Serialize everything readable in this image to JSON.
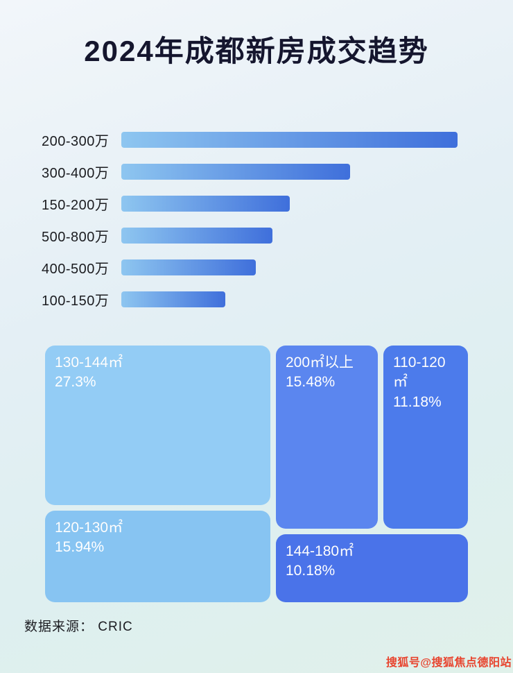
{
  "title": "2024年成都新房成交趋势",
  "footer": {
    "source_label": "数据来源： CRIC"
  },
  "watermark": "搜狐号@搜狐焦点德阳站",
  "colors": {
    "bar_gradient_start": "#8ec6f0",
    "bar_gradient_end": "#3f6fdb",
    "title_text": "#15162e"
  },
  "chart_data": [
    {
      "type": "bar",
      "orientation": "horizontal",
      "title": "2024年成都新房成交趋势",
      "categories": [
        "200-300万",
        "300-400万",
        "150-200万",
        "500-800万",
        "400-500万",
        "100-150万"
      ],
      "values": [
        100,
        68,
        50,
        45,
        40,
        31
      ],
      "value_note": "relative bar length as % of longest bar; no numeric axis or data labels shown",
      "xlabel": "",
      "ylabel": "",
      "grid": false,
      "legend": false
    },
    {
      "type": "treemap",
      "title": "",
      "items": [
        {
          "label": "130-144㎡",
          "value": "27.3%",
          "color": "#93ccf5"
        },
        {
          "label": "200㎡以上",
          "value": "15.48%",
          "color": "#5b86ef"
        },
        {
          "label": "110-120㎡",
          "value": "11.18%",
          "color": "#4c7beb"
        },
        {
          "label": "120-130㎡",
          "value": "15.94%",
          "color": "#87c4f2"
        },
        {
          "label": "144-180㎡",
          "value": "10.18%",
          "color": "#4a73e9"
        }
      ]
    }
  ]
}
